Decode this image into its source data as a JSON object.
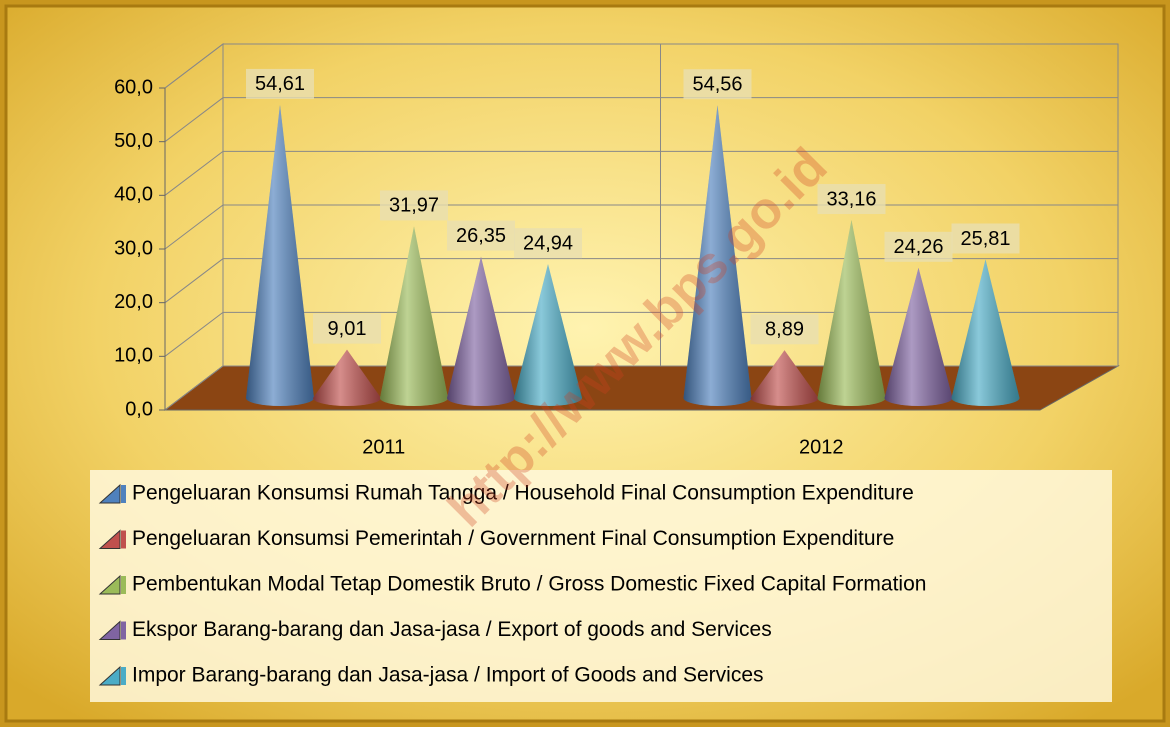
{
  "chart_data": {
    "type": "cone3d",
    "categories": [
      "2011",
      "2012"
    ],
    "series": [
      {
        "name": "Pengeluaran Konsumsi Rumah Tangga / Household Final Consumption Expenditure",
        "color": "#4f81bd",
        "values": [
          54.61,
          54.56
        ],
        "value_labels": [
          "54,61",
          "54,56"
        ]
      },
      {
        "name": "Pengeluaran Konsumsi Pemerintah / Government Final Consumption Expenditure",
        "color": "#c0504d",
        "values": [
          9.01,
          8.89
        ],
        "value_labels": [
          "9,01",
          "8,89"
        ]
      },
      {
        "name": "Pembentukan Modal Tetap Domestik Bruto / Gross Domestic Fixed Capital Formation",
        "color": "#9bbb59",
        "values": [
          31.97,
          33.16
        ],
        "value_labels": [
          "31,97",
          "33,16"
        ]
      },
      {
        "name": "Ekspor Barang-barang dan Jasa-jasa / Export of goods and Services",
        "color": "#8064a2",
        "values": [
          26.35,
          24.26
        ],
        "value_labels": [
          "26,35",
          "24,26"
        ]
      },
      {
        "name": "Impor Barang-barang dan Jasa-jasa / Import of Goods and Services",
        "color": "#4bacc6",
        "values": [
          24.94,
          25.81
        ],
        "value_labels": [
          "24,94",
          "25,81"
        ]
      }
    ],
    "ylim": [
      0,
      60
    ],
    "yticks": [
      {
        "value": 0,
        "label": "0,0"
      },
      {
        "value": 10,
        "label": "10,0"
      },
      {
        "value": 20,
        "label": "20,0"
      },
      {
        "value": 30,
        "label": "30,0"
      },
      {
        "value": 40,
        "label": "40,0"
      },
      {
        "value": 50,
        "label": "50,0"
      },
      {
        "value": 60,
        "label": "60,0"
      }
    ],
    "grid": true,
    "watermark": "http://www.bps.go.id"
  }
}
